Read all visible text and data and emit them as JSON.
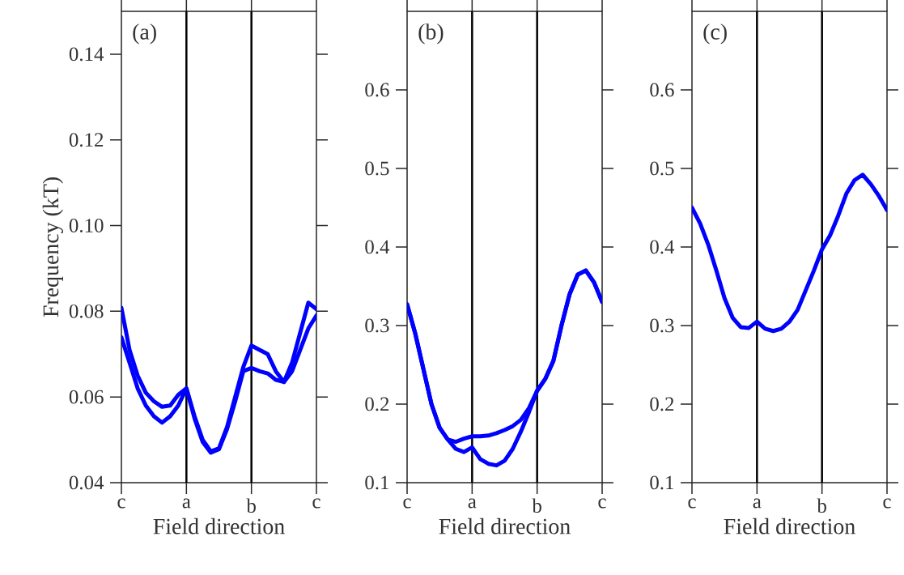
{
  "chart_data": [
    {
      "type": "line",
      "xlabel": "Field direction",
      "ylabel": "Frequency (kT)",
      "annotations": [
        "(a)"
      ],
      "categories": [
        "c",
        null,
        null,
        null,
        null,
        null,
        null,
        null,
        "a",
        null,
        null,
        null,
        null,
        null,
        null,
        null,
        "b",
        null,
        null,
        null,
        null,
        null,
        null,
        null,
        "c"
      ],
      "ylim": [
        0.04,
        0.15
      ],
      "yticks": [
        {
          "value": 0.04,
          "label": "0.04"
        },
        {
          "value": 0.06,
          "label": "0.06"
        },
        {
          "value": 0.08,
          "label": "0.08"
        },
        {
          "value": 0.1,
          "label": "0.10"
        },
        {
          "value": 0.12,
          "label": "0.12"
        },
        {
          "value": 0.14,
          "label": "0.14"
        }
      ],
      "ref_lines": [
        {
          "axis": "x",
          "value": "a",
          "color": "#000000"
        },
        {
          "axis": "x",
          "value": "b",
          "color": "#000000"
        }
      ],
      "series": [
        {
          "color": "#0000ff",
          "values": [
            0.0808,
            0.071,
            0.065,
            0.061,
            0.059,
            0.0577,
            0.058,
            0.0605,
            0.062,
            0.0555,
            0.05,
            0.0473,
            0.048,
            0.053,
            0.06,
            0.067,
            0.072,
            0.071,
            0.07,
            0.066,
            0.0635,
            0.068,
            0.075,
            0.082,
            0.0805
          ]
        },
        {
          "color": "#0000ff",
          "values": [
            0.0739,
            0.068,
            0.062,
            0.058,
            0.0555,
            0.054,
            0.0555,
            0.058,
            0.062,
            0.055,
            0.0495,
            0.047,
            0.0478,
            0.0525,
            0.059,
            0.066,
            0.0668,
            0.066,
            0.0655,
            0.064,
            0.0635,
            0.066,
            0.071,
            0.076,
            0.079
          ]
        }
      ]
    },
    {
      "type": "line",
      "xlabel": "Field direction",
      "annotations": [
        "(b)"
      ],
      "categories": [
        "c",
        null,
        null,
        null,
        null,
        null,
        null,
        null,
        "a",
        null,
        null,
        null,
        null,
        null,
        null,
        null,
        "b",
        null,
        null,
        null,
        null,
        null,
        null,
        null,
        "c"
      ],
      "ylim": [
        0.1,
        0.7
      ],
      "yticks": [
        0.1,
        0.2,
        0.3,
        0.4,
        0.5,
        0.6
      ],
      "ref_lines": [
        {
          "axis": "x",
          "value": "a",
          "color": "#000000"
        },
        {
          "axis": "x",
          "value": "b",
          "color": "#000000"
        }
      ],
      "series": [
        {
          "color": "#0000ff",
          "values": [
            0.327,
            0.29,
            0.245,
            0.2,
            0.17,
            0.155,
            0.152,
            0.156,
            0.159,
            0.159,
            0.16,
            0.163,
            0.167,
            0.172,
            0.18,
            0.195,
            0.217,
            0.232,
            0.255,
            0.3,
            0.34,
            0.365,
            0.37,
            0.355,
            0.33
          ]
        },
        {
          "color": "#0000ff",
          "values": [
            0.327,
            0.29,
            0.245,
            0.2,
            0.17,
            0.155,
            0.143,
            0.139,
            0.145,
            0.13,
            0.124,
            0.122,
            0.128,
            0.143,
            0.165,
            0.19,
            0.217,
            0.232,
            0.255,
            0.3,
            0.34,
            0.365,
            0.37,
            0.355,
            0.33
          ]
        }
      ]
    },
    {
      "type": "line",
      "xlabel": "Field direction",
      "annotations": [
        "(c)"
      ],
      "categories": [
        "c",
        null,
        null,
        null,
        null,
        null,
        null,
        null,
        "a",
        null,
        null,
        null,
        null,
        null,
        null,
        null,
        "b",
        null,
        null,
        null,
        null,
        null,
        null,
        null,
        "c"
      ],
      "ylim": [
        0.1,
        0.7
      ],
      "yticks": [
        0.1,
        0.2,
        0.3,
        0.4,
        0.5,
        0.6
      ],
      "ref_lines": [
        {
          "axis": "x",
          "value": "a",
          "color": "#000000"
        },
        {
          "axis": "x",
          "value": "b",
          "color": "#000000"
        }
      ],
      "series": [
        {
          "color": "#0000ff",
          "values": [
            0.45,
            0.43,
            0.403,
            0.37,
            0.335,
            0.31,
            0.298,
            0.297,
            0.305,
            0.296,
            0.293,
            0.296,
            0.305,
            0.32,
            0.345,
            0.37,
            0.397,
            0.415,
            0.44,
            0.468,
            0.485,
            0.492,
            0.48,
            0.465,
            0.447
          ]
        }
      ]
    }
  ]
}
